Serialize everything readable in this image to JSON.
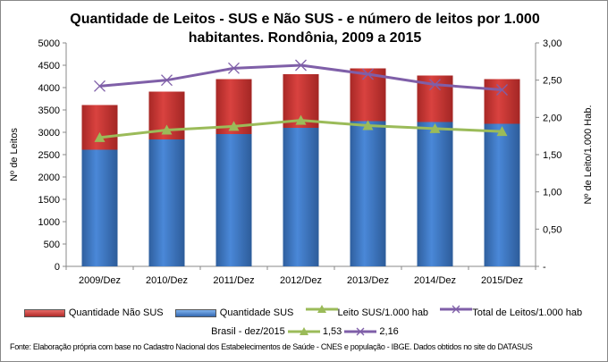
{
  "chart_data": {
    "type": "bar+line",
    "title": "Quantidade de Leitos - SUS e Não SUS - e número de leitos por 1.000 habitantes. Rondônia, 2009 a 2015",
    "ylabel": "Nº de Leitos",
    "y2label": "Nº de Leito/1.000 Hab.",
    "ylim": [
      0,
      5000
    ],
    "y2lim": [
      0,
      3
    ],
    "yticks": [
      "0",
      "500",
      "1000",
      "1500",
      "2000",
      "2500",
      "3000",
      "3500",
      "4000",
      "4500",
      "5000"
    ],
    "y2ticks": [
      "-",
      "0,50",
      "1,00",
      "1,50",
      "2,00",
      "2,50",
      "3,00"
    ],
    "categories": [
      "2009/Dez",
      "2010/Dez",
      "2011/Dez",
      "2012/Dez",
      "2013/Dez",
      "2014/Dez",
      "2015/Dez"
    ],
    "series": [
      {
        "name": "Quantidade Não SUS",
        "type": "stacked-bar",
        "axis": "left",
        "color": "#c0312f",
        "values": [
          1000,
          1070,
          1230,
          1200,
          1180,
          1040,
          1000
        ]
      },
      {
        "name": "Quantidade SUS",
        "type": "stacked-bar",
        "axis": "left",
        "color": "#3f7ccc",
        "values": [
          2610,
          2840,
          2960,
          3100,
          3250,
          3230,
          3190
        ]
      },
      {
        "name": "Leito SUS/1.000 hab",
        "type": "line",
        "axis": "right",
        "color": "#9bbb59",
        "marker": "triangle",
        "values": [
          1.73,
          1.83,
          1.88,
          1.96,
          1.89,
          1.85,
          1.81
        ]
      },
      {
        "name": "Total de Leitos/1.000 hab",
        "type": "line",
        "axis": "right",
        "color": "#7f5fa8",
        "marker": "x",
        "values": [
          2.42,
          2.5,
          2.66,
          2.7,
          2.58,
          2.44,
          2.37
        ]
      }
    ],
    "grid": false,
    "legend": "bottom"
  },
  "reference": {
    "label": "Brasil -  dez/2015",
    "leito_sus": "1,53",
    "total": "2,16"
  },
  "source": "Fonte: Elaboração própria com base no  Cadastro Nacional dos Estabelecimentos de Saúde - CNES e população - IBGE. Dados obtidos no site do DATASUS"
}
